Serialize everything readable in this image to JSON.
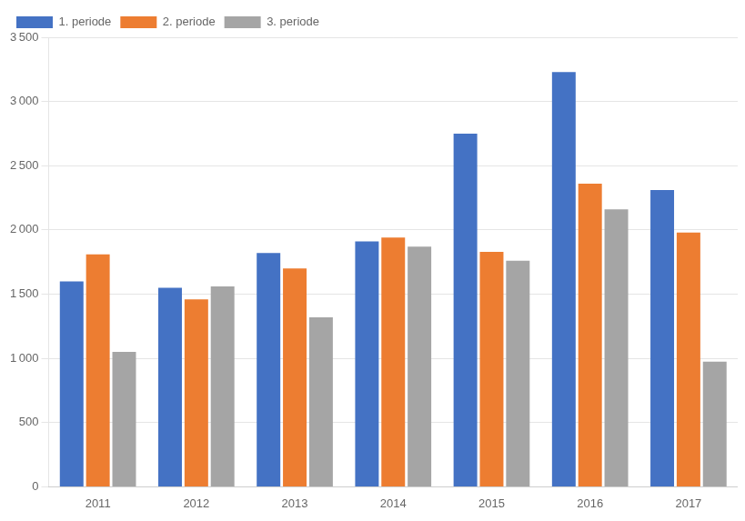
{
  "chart_data": {
    "type": "bar",
    "categories": [
      "2011",
      "2012",
      "2013",
      "2014",
      "2015",
      "2016",
      "2017"
    ],
    "series": [
      {
        "name": "1. periode",
        "color": "#4472C4",
        "values": [
          1600,
          1550,
          1820,
          1910,
          2750,
          3230,
          2310
        ]
      },
      {
        "name": "2. periode",
        "color": "#ED7D31",
        "values": [
          1810,
          1460,
          1700,
          1940,
          1830,
          2360,
          1980
        ]
      },
      {
        "name": "3. periode",
        "color": "#A5A5A5",
        "values": [
          1050,
          1560,
          1320,
          1870,
          1760,
          2160,
          975
        ]
      }
    ],
    "ylim": [
      0,
      3500
    ],
    "yticks": [
      0,
      500,
      {
        "value": 1000,
        "label": "1 000"
      },
      {
        "value": 1500,
        "label": "1 500"
      },
      {
        "value": 2000,
        "label": "2 000"
      },
      {
        "value": 2500,
        "label": "2 500"
      },
      {
        "value": 3000,
        "label": "3 000"
      },
      {
        "value": 3500,
        "label": "3 500"
      }
    ],
    "grid": true,
    "legend": "upper left"
  }
}
